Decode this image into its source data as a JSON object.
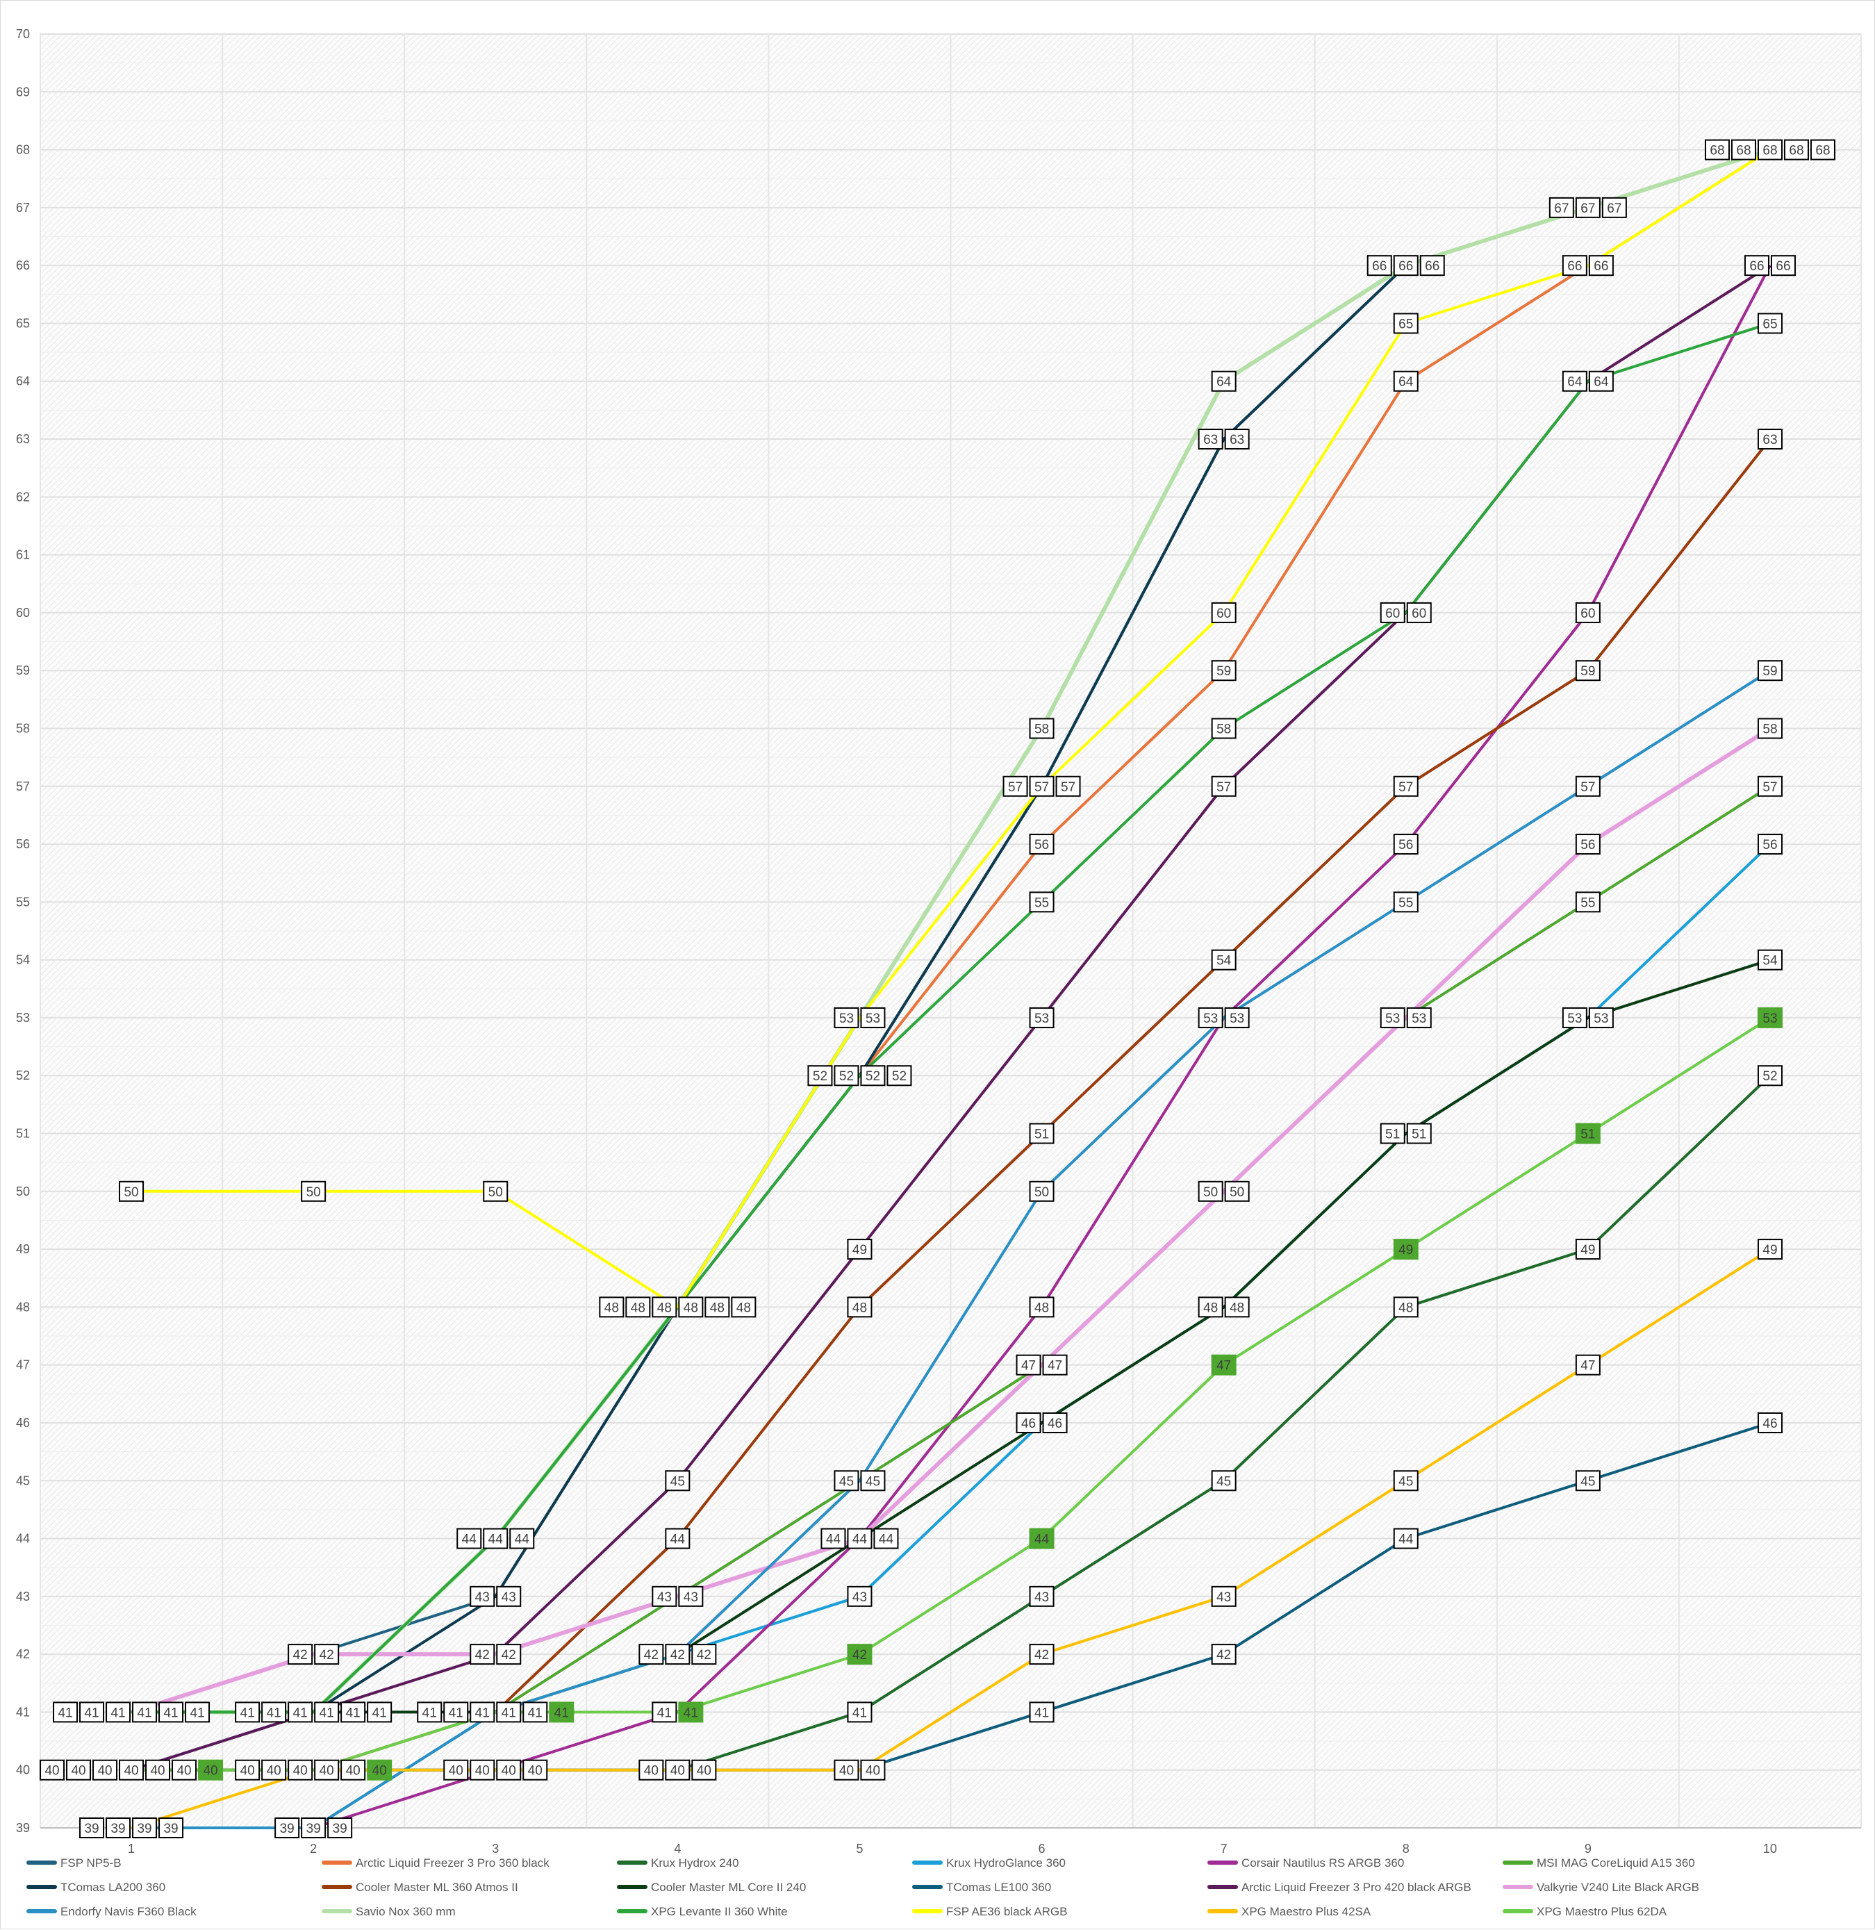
{
  "chart_data": {
    "type": "line",
    "title": "",
    "xlabel": "",
    "ylabel": "",
    "x": [
      1,
      2,
      3,
      4,
      5,
      6,
      7,
      8,
      9,
      10
    ],
    "ylim": [
      39,
      70
    ],
    "yticks": [
      39,
      40,
      41,
      42,
      43,
      44,
      45,
      46,
      47,
      48,
      49,
      50,
      51,
      52,
      53,
      54,
      55,
      56,
      57,
      58,
      59,
      60,
      61,
      62,
      63,
      64,
      65,
      66,
      67,
      68,
      69,
      70
    ],
    "grid": true,
    "legend_position": "bottom",
    "data_labels": true,
    "series": [
      {
        "name": "FSP NP5-B",
        "color": "#1f6181",
        "values": [
          41,
          42,
          43,
          48,
          52,
          57,
          63,
          66,
          67,
          68
        ]
      },
      {
        "name": "Arctic Liquid Freezer 3 Pro 360 black",
        "color": "#e8743b",
        "values": [
          41,
          41,
          44,
          48,
          52,
          56,
          59,
          64,
          66,
          68
        ]
      },
      {
        "name": "Krux Hydrox 240",
        "color": "#1e6b2a",
        "values": [
          40,
          40,
          40,
          40,
          41,
          43,
          45,
          48,
          49,
          52
        ]
      },
      {
        "name": "Krux HydroGlance 360",
        "color": "#1a9fd8",
        "values": [
          39,
          39,
          41,
          42,
          43,
          46,
          48,
          51,
          53,
          56
        ]
      },
      {
        "name": "Corsair  Nautilus RS ARGB 360",
        "color": "#a02b93",
        "values": [
          39,
          39,
          40,
          41,
          44,
          48,
          53,
          56,
          60,
          66
        ]
      },
      {
        "name": "MSI MAG CoreLiquid A15 360",
        "color": "#4ea72e",
        "values": [
          40,
          40,
          41,
          43,
          45,
          47,
          50,
          53,
          55,
          57
        ]
      },
      {
        "name": "TComas LA200 360",
        "color": "#0e3a4f",
        "values": [
          40,
          41,
          43,
          48,
          52,
          57,
          63,
          66,
          67,
          68
        ]
      },
      {
        "name": "Cooler Master ML 360 Atmos II",
        "color": "#9a3b0c",
        "values": [
          40,
          40,
          41,
          44,
          48,
          51,
          54,
          57,
          59,
          63
        ]
      },
      {
        "name": "Cooler Master ML Core II 240",
        "color": "#0b3d14",
        "values": [
          41,
          41,
          41,
          42,
          44,
          46,
          48,
          51,
          53,
          54
        ]
      },
      {
        "name": "TComas LE100 360",
        "color": "#0f5d7c",
        "values": [
          40,
          40,
          40,
          40,
          40,
          41,
          42,
          44,
          45,
          46
        ]
      },
      {
        "name": "Arctic Liquid Freezer 3 Pro 420 black ARGB",
        "color": "#5c1a5a",
        "values": [
          40,
          41,
          42,
          45,
          49,
          53,
          57,
          60,
          64,
          66
        ]
      },
      {
        "name": "Valkyrie V240 Lite Black ARGB",
        "color": "#e59edd",
        "values": [
          41,
          42,
          42,
          43,
          44,
          47,
          50,
          53,
          56,
          58
        ]
      },
      {
        "name": "Endorfy Navis F360 Black",
        "color": "#2a8fc4",
        "values": [
          39,
          39,
          41,
          42,
          45,
          50,
          53,
          55,
          57,
          59
        ]
      },
      {
        "name": "Savio Nox 360 mm",
        "color": "#b4e0a8",
        "values": [
          41,
          41,
          44,
          48,
          53,
          58,
          64,
          66,
          67,
          68
        ]
      },
      {
        "name": "XPG Levante II 360 White",
        "color": "#2ca63c",
        "values": [
          41,
          41,
          44,
          48,
          52,
          55,
          58,
          60,
          64,
          65
        ]
      },
      {
        "name": "FSP AE36 black ARGB",
        "color": "#ffff00",
        "values": [
          50,
          50,
          50,
          48,
          53,
          57,
          60,
          65,
          66,
          68
        ]
      },
      {
        "name": "XPG Maestro Plus 42SA",
        "color": "#ffc000",
        "values": [
          39,
          40,
          40,
          40,
          40,
          42,
          43,
          45,
          47,
          49
        ]
      },
      {
        "name": "XPG Maestro Plus 62DA",
        "color": "#6dcd4a",
        "label_fill": "#4ea72e",
        "values": [
          40,
          40,
          41,
          41,
          42,
          44,
          47,
          49,
          51,
          53
        ]
      }
    ]
  }
}
